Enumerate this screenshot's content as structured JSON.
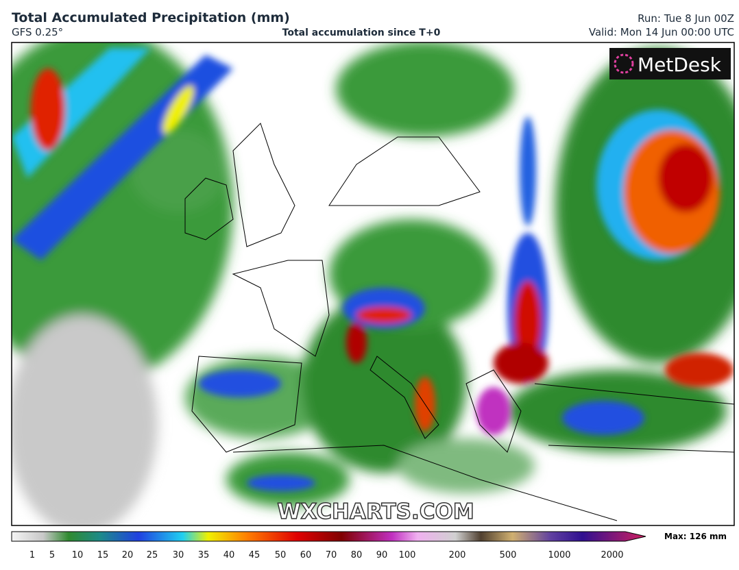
{
  "header": {
    "title": "Total Accumulated Precipitation (mm)",
    "model": "GFS 0.25°",
    "description": "Total accumulation since T+0",
    "run": "Run: Tue 8 Jun 00Z",
    "valid": "Valid: Mon 14 Jun 00:00 UTC"
  },
  "map": {
    "logo": "MetDesk",
    "watermark": "WXCHARTS.COM"
  },
  "colorbar": {
    "ticks": [
      "1",
      "5",
      "10",
      "15",
      "20",
      "25",
      "30",
      "35",
      "40",
      "45",
      "50",
      "60",
      "70",
      "80",
      "90",
      "100",
      "200",
      "500",
      "1000",
      "2000"
    ],
    "max_label": "Max: 126 mm"
  }
}
